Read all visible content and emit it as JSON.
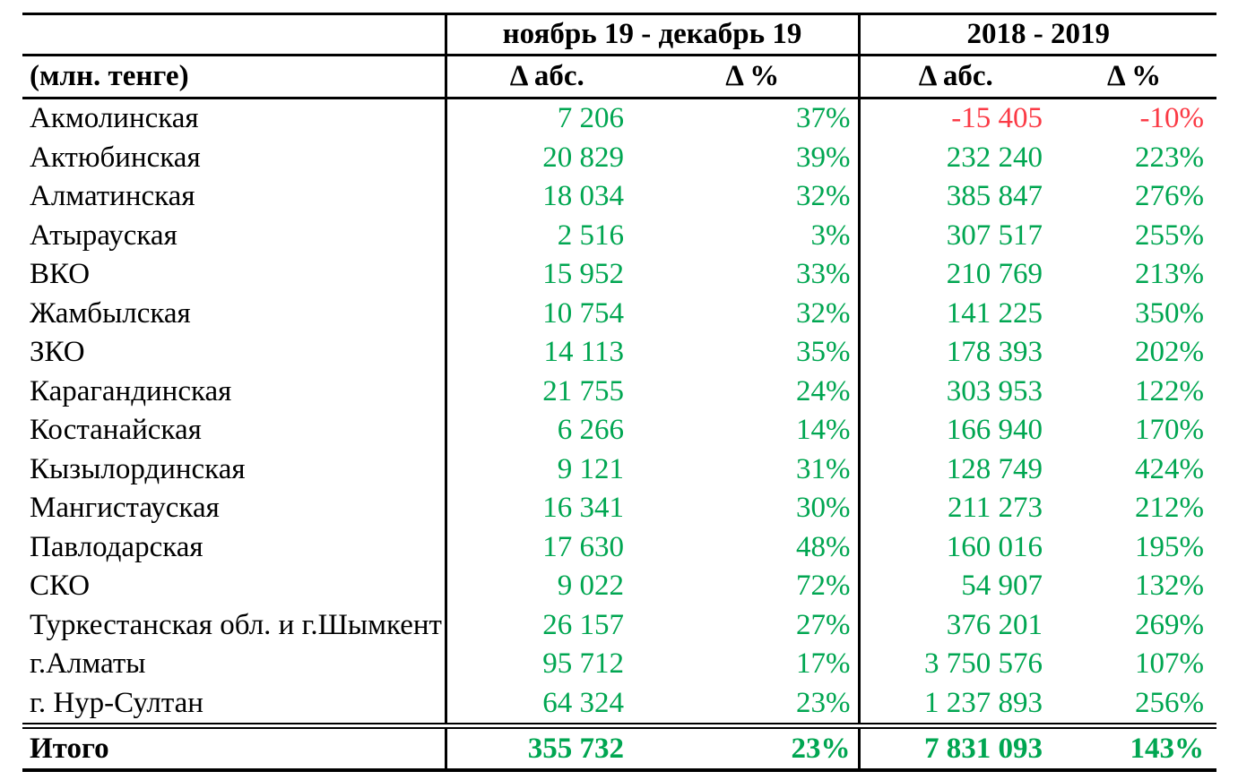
{
  "page": {
    "background": "#ffffff"
  },
  "table": {
    "unit_label": "(млн. тенге)",
    "column_groups": [
      {
        "label": "ноябрь 19 - декабрь 19",
        "subcolumns": [
          "Δ абс.",
          "Δ %"
        ]
      },
      {
        "label": "2018 - 2019",
        "subcolumns": [
          "Δ абс.",
          "Δ %"
        ]
      }
    ],
    "rows": [
      {
        "region": "Акмолинская",
        "values": [
          "7 206",
          "37%",
          "-15 405",
          "-10%"
        ]
      },
      {
        "region": "Актюбинская",
        "values": [
          "20 829",
          "39%",
          "232 240",
          "223%"
        ]
      },
      {
        "region": "Алматинская",
        "values": [
          "18 034",
          "32%",
          "385 847",
          "276%"
        ]
      },
      {
        "region": "Атырауская",
        "values": [
          "2 516",
          "3%",
          "307 517",
          "255%"
        ]
      },
      {
        "region": "ВКО",
        "values": [
          "15 952",
          "33%",
          "210 769",
          "213%"
        ]
      },
      {
        "region": "Жамбылская",
        "values": [
          "10 754",
          "32%",
          "141 225",
          "350%"
        ]
      },
      {
        "region": "ЗКО",
        "values": [
          "14 113",
          "35%",
          "178 393",
          "202%"
        ]
      },
      {
        "region": "Карагандинская",
        "values": [
          "21 755",
          "24%",
          "303 953",
          "122%"
        ]
      },
      {
        "region": "Костанайская",
        "values": [
          "6 266",
          "14%",
          "166 940",
          "170%"
        ]
      },
      {
        "region": "Кызылординская",
        "values": [
          "9 121",
          "31%",
          "128 749",
          "424%"
        ]
      },
      {
        "region": "Мангистауская",
        "values": [
          "16 341",
          "30%",
          "211 273",
          "212%"
        ]
      },
      {
        "region": "Павлодарская",
        "values": [
          "17 630",
          "48%",
          "160 016",
          "195%"
        ]
      },
      {
        "region": "СКО",
        "values": [
          "9 022",
          "72%",
          "54 907",
          "132%"
        ]
      },
      {
        "region": "Туркестанская обл. и г.Шымкент",
        "values": [
          "26 157",
          "27%",
          "376 201",
          "269%"
        ]
      },
      {
        "region": "г.Алматы",
        "values": [
          "95 712",
          "17%",
          "3 750 576",
          "107%"
        ]
      },
      {
        "region": "г. Нур-Султан",
        "values": [
          "64 324",
          "23%",
          "1 237 893",
          "256%"
        ]
      }
    ],
    "total_row": {
      "label": "Итого",
      "values": [
        "355 732",
        "23%",
        "7 831 093",
        "143%"
      ]
    },
    "colors": {
      "positive": "#00a651",
      "negative": "#fb3a45",
      "text": "#000000",
      "border": "#000000"
    }
  }
}
